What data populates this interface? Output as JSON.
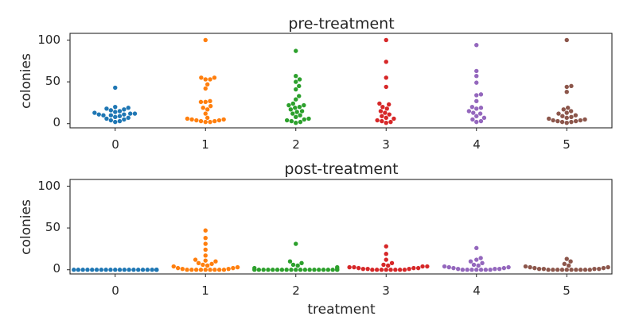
{
  "chart_data": [
    {
      "type": "scatter",
      "subtype": "swarm",
      "title": "pre-treatment",
      "xlabel": "",
      "ylabel": "colonies",
      "categories": [
        "0",
        "1",
        "2",
        "3",
        "4",
        "5"
      ],
      "yticks": [
        "0",
        "50",
        "100"
      ],
      "ylim": [
        -5,
        108
      ],
      "grid": false,
      "series": [
        {
          "category": "0",
          "color": "#1f77b4",
          "values": [
            2,
            3,
            4,
            5,
            6,
            7,
            8,
            9,
            10,
            10,
            11,
            11,
            12,
            12,
            13,
            14,
            15,
            16,
            17,
            18,
            19,
            20,
            43
          ]
        },
        {
          "category": "1",
          "color": "#ff7f0e",
          "values": [
            2,
            2,
            3,
            3,
            4,
            4,
            5,
            5,
            6,
            7,
            12,
            17,
            19,
            21,
            26,
            26,
            27,
            42,
            47,
            53,
            53,
            55,
            55,
            100
          ]
        },
        {
          "category": "2",
          "color": "#2ca02c",
          "values": [
            1,
            2,
            3,
            4,
            5,
            6,
            8,
            10,
            12,
            14,
            15,
            17,
            19,
            20,
            22,
            22,
            24,
            29,
            33,
            41,
            45,
            50,
            53,
            57,
            87
          ]
        },
        {
          "category": "3",
          "color": "#d62728",
          "values": [
            1,
            2,
            3,
            4,
            6,
            7,
            9,
            11,
            13,
            15,
            18,
            20,
            23,
            24,
            44,
            55,
            74,
            100
          ]
        },
        {
          "category": "4",
          "color": "#9467bd",
          "values": [
            2,
            3,
            5,
            7,
            9,
            12,
            13,
            15,
            18,
            19,
            20,
            27,
            34,
            35,
            49,
            57,
            63,
            94
          ]
        },
        {
          "category": "5",
          "color": "#8c564b",
          "values": [
            1,
            2,
            2,
            3,
            3,
            4,
            4,
            5,
            6,
            7,
            8,
            9,
            10,
            12,
            13,
            15,
            17,
            19,
            38,
            44,
            45,
            100
          ]
        }
      ]
    },
    {
      "type": "scatter",
      "subtype": "swarm",
      "title": "post-treatment",
      "xlabel": "treatment",
      "ylabel": "colonies",
      "categories": [
        "0",
        "1",
        "2",
        "3",
        "4",
        "5"
      ],
      "yticks": [
        "0",
        "50",
        "100"
      ],
      "ylim": [
        -5,
        108
      ],
      "grid": false,
      "series": [
        {
          "category": "0",
          "color": "#1f77b4",
          "values": [
            0,
            0,
            0,
            0,
            0,
            0,
            0,
            0,
            0,
            0,
            0,
            0,
            0,
            0,
            0,
            0,
            0,
            0,
            0,
            0,
            0,
            0
          ]
        },
        {
          "category": "1",
          "color": "#ff7f0e",
          "values": [
            0,
            0,
            0,
            0,
            0,
            0,
            0,
            0,
            0,
            1,
            1,
            2,
            2,
            3,
            4,
            5,
            6,
            7,
            8,
            10,
            11,
            12,
            17,
            24,
            31,
            38,
            47
          ]
        },
        {
          "category": "2",
          "color": "#2ca02c",
          "values": [
            0,
            0,
            0,
            0,
            0,
            0,
            0,
            0,
            0,
            0,
            0,
            0,
            0,
            0,
            0,
            0,
            0,
            0,
            0,
            0,
            1,
            2,
            3,
            5,
            6,
            8,
            10,
            31
          ]
        },
        {
          "category": "3",
          "color": "#d62728",
          "values": [
            0,
            0,
            0,
            0,
            0,
            0,
            0,
            0,
            1,
            1,
            1,
            2,
            2,
            2,
            3,
            3,
            4,
            4,
            5,
            6,
            8,
            12,
            19,
            28
          ]
        },
        {
          "category": "4",
          "color": "#9467bd",
          "values": [
            0,
            0,
            0,
            0,
            0,
            0,
            0,
            1,
            1,
            1,
            2,
            2,
            3,
            3,
            4,
            5,
            6,
            8,
            10,
            12,
            14,
            26
          ]
        },
        {
          "category": "5",
          "color": "#8c564b",
          "values": [
            0,
            0,
            0,
            0,
            0,
            0,
            0,
            0,
            0,
            0,
            1,
            1,
            1,
            1,
            2,
            2,
            3,
            3,
            4,
            5,
            7,
            10,
            13
          ]
        }
      ]
    }
  ]
}
